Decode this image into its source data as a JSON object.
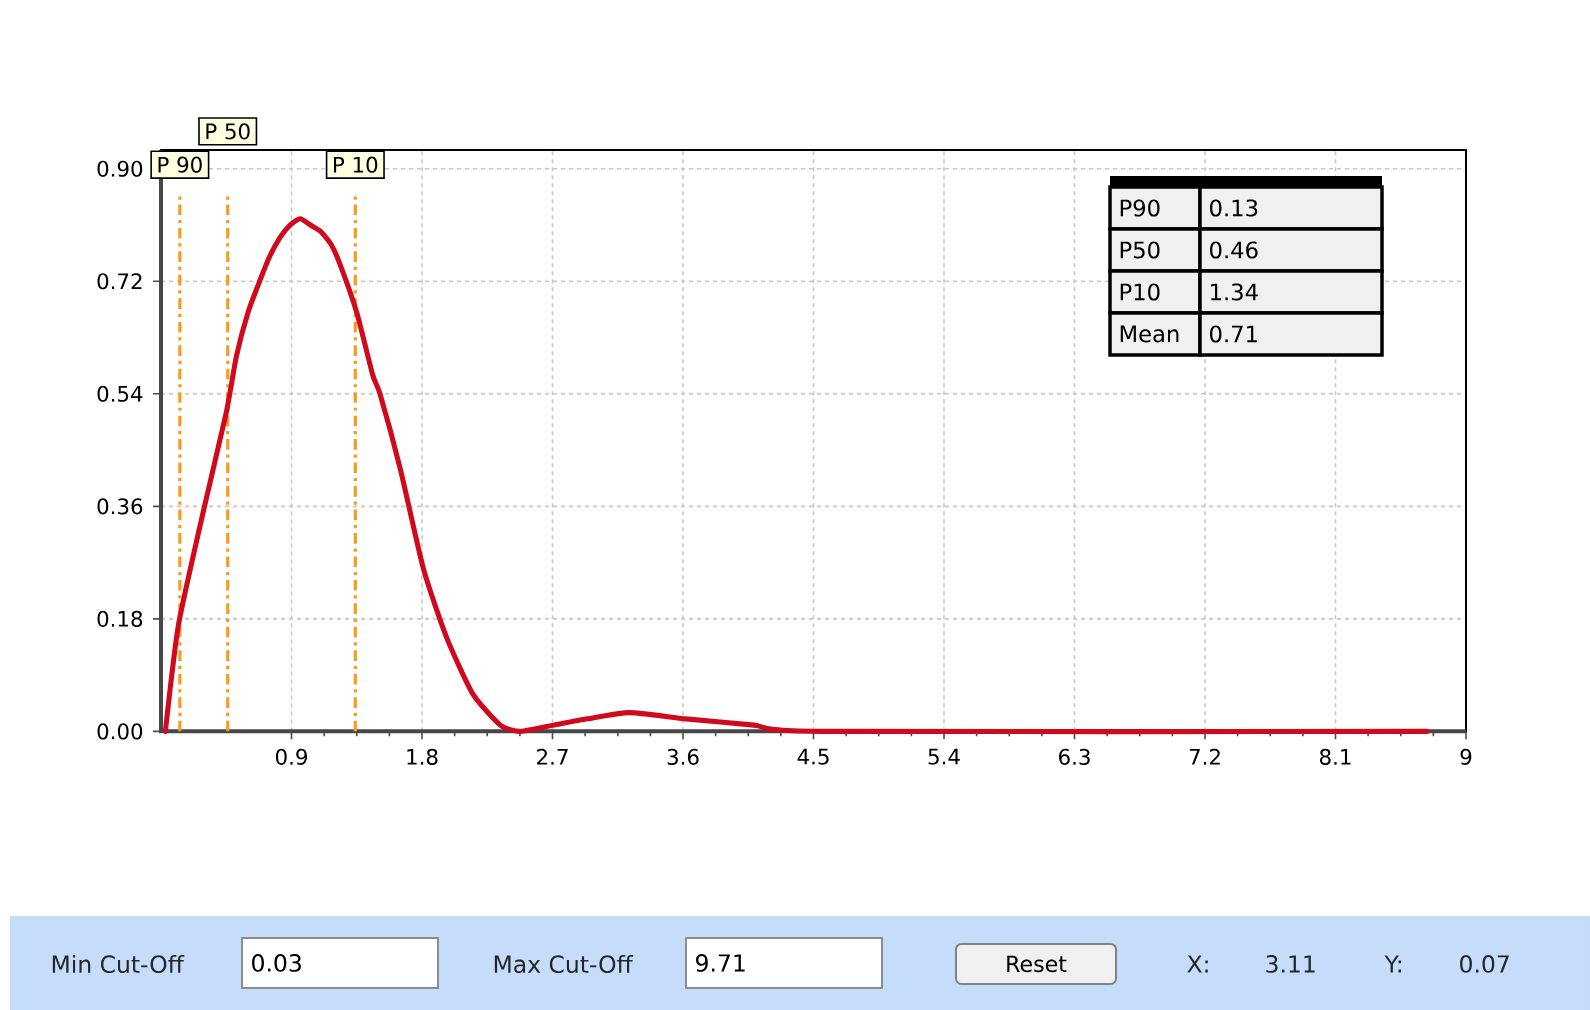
{
  "chart_data": {
    "type": "line",
    "x": [
      0.03,
      0.12,
      0.29,
      0.45,
      0.52,
      0.6,
      0.68,
      0.75,
      0.82,
      0.89,
      0.96,
      1.03,
      1.1,
      1.17,
      1.23,
      1.35,
      1.46,
      1.51,
      1.65,
      1.81,
      1.97,
      2.15,
      2.34,
      2.48,
      2.71,
      2.94,
      3.23,
      3.62,
      4.09,
      4.54,
      8.73
    ],
    "values": [
      0,
      0.17,
      0.35,
      0.51,
      0.6,
      0.67,
      0.72,
      0.76,
      0.79,
      0.81,
      0.82,
      0.81,
      0.8,
      0.78,
      0.75,
      0.67,
      0.57,
      0.54,
      0.42,
      0.26,
      0.15,
      0.06,
      0.01,
      0,
      0.01,
      0.02,
      0.03,
      0.02,
      0.01,
      0,
      0
    ],
    "color": "#d0091d",
    "xlim": [
      0,
      9
    ],
    "ylim": [
      0,
      0.93
    ],
    "xticks": [
      0.9,
      1.8,
      2.7,
      3.6,
      4.5,
      5.4,
      6.3,
      7.2,
      8.1,
      9
    ],
    "yticks": [
      {
        "value": 0,
        "label": "0.00"
      },
      0.18,
      0.36,
      0.54,
      0.72,
      {
        "value": 0.9,
        "label": "0.90"
      }
    ],
    "grid": true,
    "marker": "none",
    "ref_lines": [
      {
        "axis": "x",
        "value": 0.13,
        "label": "P 90",
        "color": "#f59d20",
        "line_style": "dashdot"
      },
      {
        "axis": "x",
        "value": 0.46,
        "label": "P 50",
        "color": "#f59d20",
        "line_style": "dashdot"
      },
      {
        "axis": "x",
        "value": 1.34,
        "label": "P 10",
        "color": "#f59d20",
        "line_style": "dashdot"
      }
    ],
    "annotations": [
      "P90",
      "0.13",
      "P50",
      "0.46",
      "P10",
      "1.34",
      "Mean",
      "0.71",
      "Min Cut-Off",
      "0.03",
      "Max Cut-Off",
      "9.71",
      "Reset",
      "X:",
      "3.11",
      "Y:",
      "0.07"
    ]
  }
}
